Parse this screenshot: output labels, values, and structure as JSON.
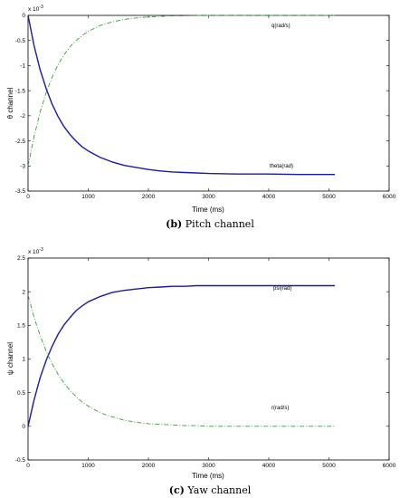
{
  "chart_data": [
    {
      "type": "line",
      "caption_label": "(b)",
      "caption_text": "Pitch channel",
      "xlabel": "Time (ms)",
      "ylabel": "θ channel",
      "exponent": "x 10",
      "exponent_power": "-3",
      "xlim": [
        0,
        6000
      ],
      "ylim": [
        -3.5,
        0
      ],
      "xticks": [
        "0",
        "1000",
        "2000",
        "3000",
        "4000",
        "5000",
        "6000"
      ],
      "yticks": [
        "0",
        "-0.5",
        "-1",
        "-1.5",
        "-2",
        "-2.5",
        "-3",
        "-3.5"
      ],
      "series": [
        {
          "name": "theta(rad)",
          "color": "#1a1aa6",
          "style": "solid",
          "x": [
            0,
            100,
            200,
            300,
            400,
            500,
            600,
            700,
            800,
            900,
            1000,
            1200,
            1400,
            1600,
            1800,
            2000,
            2200,
            2400,
            2600,
            2800,
            3000,
            3500,
            4000,
            4500,
            5100
          ],
          "y": [
            0,
            -0.6,
            -1.08,
            -1.46,
            -1.77,
            -2.02,
            -2.22,
            -2.38,
            -2.51,
            -2.62,
            -2.7,
            -2.83,
            -2.92,
            -2.99,
            -3.03,
            -3.07,
            -3.1,
            -3.12,
            -3.13,
            -3.14,
            -3.15,
            -3.16,
            -3.16,
            -3.17,
            -3.17
          ]
        },
        {
          "name": "q(rad/s)",
          "color": "#3a9a3a",
          "style": "dashdot",
          "x": [
            0,
            100,
            200,
            300,
            400,
            500,
            600,
            700,
            800,
            900,
            1000,
            1200,
            1400,
            1600,
            1800,
            2000,
            2200,
            2400,
            2600,
            2800,
            3000,
            3500,
            4000,
            4500,
            5100
          ],
          "y": [
            -3.0,
            -2.42,
            -1.93,
            -1.54,
            -1.23,
            -0.98,
            -0.78,
            -0.62,
            -0.5,
            -0.4,
            -0.32,
            -0.2,
            -0.13,
            -0.08,
            -0.05,
            -0.03,
            -0.02,
            -0.01,
            -0.01,
            0,
            0,
            0,
            0,
            0,
            0
          ]
        }
      ]
    },
    {
      "type": "line",
      "caption_label": "(c)",
      "caption_text": "Yaw channel",
      "xlabel": "Time (ms)",
      "ylabel": "ψ channel",
      "exponent": "x 10",
      "exponent_power": "-3",
      "xlim": [
        0,
        6000
      ],
      "ylim": [
        -0.5,
        2.5
      ],
      "xticks": [
        "0",
        "1000",
        "2000",
        "3000",
        "4000",
        "5000",
        "6000"
      ],
      "yticks": [
        "2.5",
        "2",
        "1.5",
        "1",
        "0.5",
        "0",
        "-0.5"
      ],
      "series": [
        {
          "name": "psi(rad)",
          "color": "#1a1aa6",
          "style": "solid",
          "x": [
            0,
            100,
            200,
            300,
            400,
            500,
            600,
            700,
            800,
            900,
            1000,
            1200,
            1400,
            1600,
            1800,
            2000,
            2200,
            2400,
            2600,
            2800,
            3000,
            3500,
            4000,
            4500,
            5100
          ],
          "y": [
            0,
            0.39,
            0.72,
            0.98,
            1.19,
            1.37,
            1.51,
            1.62,
            1.72,
            1.79,
            1.85,
            1.93,
            1.99,
            2.02,
            2.04,
            2.06,
            2.07,
            2.08,
            2.08,
            2.09,
            2.09,
            2.09,
            2.09,
            2.09,
            2.09
          ]
        },
        {
          "name": "r(rad/s)",
          "color": "#3a9a3a",
          "style": "dashdot",
          "x": [
            0,
            100,
            200,
            300,
            400,
            500,
            600,
            700,
            800,
            900,
            1000,
            1200,
            1400,
            1600,
            1800,
            2000,
            2200,
            2400,
            2600,
            2800,
            3000,
            3500,
            4000,
            4500,
            5100
          ],
          "y": [
            1.95,
            1.62,
            1.35,
            1.12,
            0.93,
            0.77,
            0.64,
            0.53,
            0.44,
            0.36,
            0.3,
            0.2,
            0.14,
            0.09,
            0.06,
            0.04,
            0.03,
            0.02,
            0.01,
            0.01,
            0,
            0,
            0,
            0,
            0
          ]
        }
      ]
    }
  ]
}
